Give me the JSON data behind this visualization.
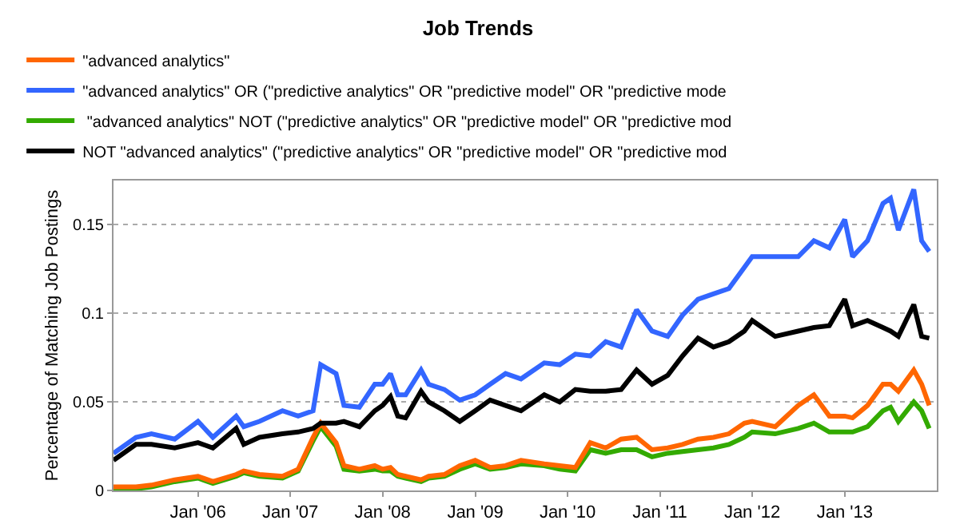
{
  "chart_data": {
    "type": "line",
    "title": "Job Trends",
    "ylabel": "Percentage of Matching Job Postings",
    "x": [
      "2005-02",
      "2005-05",
      "2005-07",
      "2005-10",
      "2006-01",
      "2006-03",
      "2006-06",
      "2006-07",
      "2006-09",
      "2006-12",
      "2007-02",
      "2007-04",
      "2007-05",
      "2007-07",
      "2007-08",
      "2007-10",
      "2007-12",
      "2008-01",
      "2008-02",
      "2008-03",
      "2008-04",
      "2008-06",
      "2008-07",
      "2008-09",
      "2008-11",
      "2009-01",
      "2009-03",
      "2009-05",
      "2009-07",
      "2009-10",
      "2009-12",
      "2010-02",
      "2010-04",
      "2010-06",
      "2010-08",
      "2010-10",
      "2010-12",
      "2011-02",
      "2011-04",
      "2011-06",
      "2011-08",
      "2011-10",
      "2011-12",
      "2012-01",
      "2012-04",
      "2012-07",
      "2012-09",
      "2012-11",
      "2013-01",
      "2013-02",
      "2013-04",
      "2013-06",
      "2013-07",
      "2013-08",
      "2013-10",
      "2013-11",
      "2013-12"
    ],
    "series": [
      {
        "name": "\"advanced analytics\"",
        "color": "#ff6600",
        "values": [
          0.002,
          0.002,
          0.003,
          0.006,
          0.008,
          0.005,
          0.009,
          0.011,
          0.009,
          0.008,
          0.012,
          0.03,
          0.038,
          0.027,
          0.014,
          0.012,
          0.014,
          0.012,
          0.013,
          0.009,
          0.008,
          0.006,
          0.008,
          0.009,
          0.014,
          0.017,
          0.013,
          0.014,
          0.017,
          0.015,
          0.014,
          0.013,
          0.027,
          0.024,
          0.029,
          0.03,
          0.023,
          0.024,
          0.026,
          0.029,
          0.03,
          0.032,
          0.038,
          0.039,
          0.036,
          0.048,
          0.054,
          0.042,
          0.042,
          0.041,
          0.048,
          0.06,
          0.06,
          0.056,
          0.068,
          0.06,
          0.048
        ]
      },
      {
        "name": "\"advanced analytics\" OR (\"predictive analytics\" OR \"predictive model\" OR \"predictive mode",
        "color": "#3366ff",
        "values": [
          0.021,
          0.03,
          0.032,
          0.029,
          0.039,
          0.03,
          0.042,
          0.036,
          0.039,
          0.045,
          0.042,
          0.045,
          0.071,
          0.066,
          0.048,
          0.047,
          0.06,
          0.06,
          0.066,
          0.054,
          0.054,
          0.068,
          0.06,
          0.057,
          0.051,
          0.054,
          0.06,
          0.066,
          0.063,
          0.072,
          0.071,
          0.077,
          0.076,
          0.084,
          0.081,
          0.102,
          0.09,
          0.087,
          0.099,
          0.108,
          0.111,
          0.114,
          0.126,
          0.132,
          0.132,
          0.132,
          0.141,
          0.137,
          0.153,
          0.132,
          0.141,
          0.162,
          0.165,
          0.147,
          0.17,
          0.141,
          0.135
        ]
      },
      {
        "name": " \"advanced analytics\" NOT (\"predictive analytics\" OR \"predictive model\" OR \"predictive mod",
        "color": "#33aa00",
        "values": [
          0.001,
          0.001,
          0.002,
          0.005,
          0.007,
          0.004,
          0.008,
          0.01,
          0.008,
          0.007,
          0.011,
          0.028,
          0.036,
          0.025,
          0.012,
          0.011,
          0.012,
          0.011,
          0.011,
          0.008,
          0.007,
          0.005,
          0.007,
          0.008,
          0.012,
          0.015,
          0.012,
          0.013,
          0.015,
          0.014,
          0.012,
          0.011,
          0.023,
          0.021,
          0.023,
          0.023,
          0.019,
          0.021,
          0.022,
          0.023,
          0.024,
          0.026,
          0.03,
          0.033,
          0.032,
          0.035,
          0.038,
          0.033,
          0.033,
          0.033,
          0.036,
          0.045,
          0.047,
          0.039,
          0.05,
          0.045,
          0.035
        ]
      },
      {
        "name": "NOT \"advanced analytics\" (\"predictive analytics\" OR \"predictive model\" OR \"predictive mod",
        "color": "#000000",
        "values": [
          0.017,
          0.026,
          0.026,
          0.024,
          0.027,
          0.024,
          0.035,
          0.026,
          0.03,
          0.032,
          0.033,
          0.035,
          0.038,
          0.038,
          0.039,
          0.036,
          0.045,
          0.048,
          0.053,
          0.042,
          0.041,
          0.056,
          0.05,
          0.045,
          0.039,
          0.045,
          0.051,
          0.048,
          0.045,
          0.054,
          0.05,
          0.057,
          0.056,
          0.056,
          0.057,
          0.068,
          0.06,
          0.065,
          0.076,
          0.086,
          0.081,
          0.084,
          0.09,
          0.096,
          0.087,
          0.09,
          0.092,
          0.093,
          0.108,
          0.093,
          0.096,
          0.092,
          0.09,
          0.087,
          0.105,
          0.087,
          0.086
        ]
      }
    ],
    "xlim": [
      "2005-02-01",
      "2013-12-31"
    ],
    "xticks": [
      {
        "value": "2006-01",
        "label": "Jan '06"
      },
      {
        "value": "2007-01",
        "label": "Jan '07"
      },
      {
        "value": "2008-01",
        "label": "Jan '08"
      },
      {
        "value": "2009-01",
        "label": "Jan '09"
      },
      {
        "value": "2010-01",
        "label": "Jan '10"
      },
      {
        "value": "2011-01",
        "label": "Jan '11"
      },
      {
        "value": "2012-01",
        "label": "Jan '12"
      },
      {
        "value": "2013-01",
        "label": "Jan '13"
      }
    ],
    "ylim": [
      0,
      0.175
    ],
    "yticks": [
      0,
      0.05,
      0.1,
      0.15
    ],
    "grid": "y",
    "legend": "top left",
    "line_style": "solid",
    "marker": "none"
  }
}
